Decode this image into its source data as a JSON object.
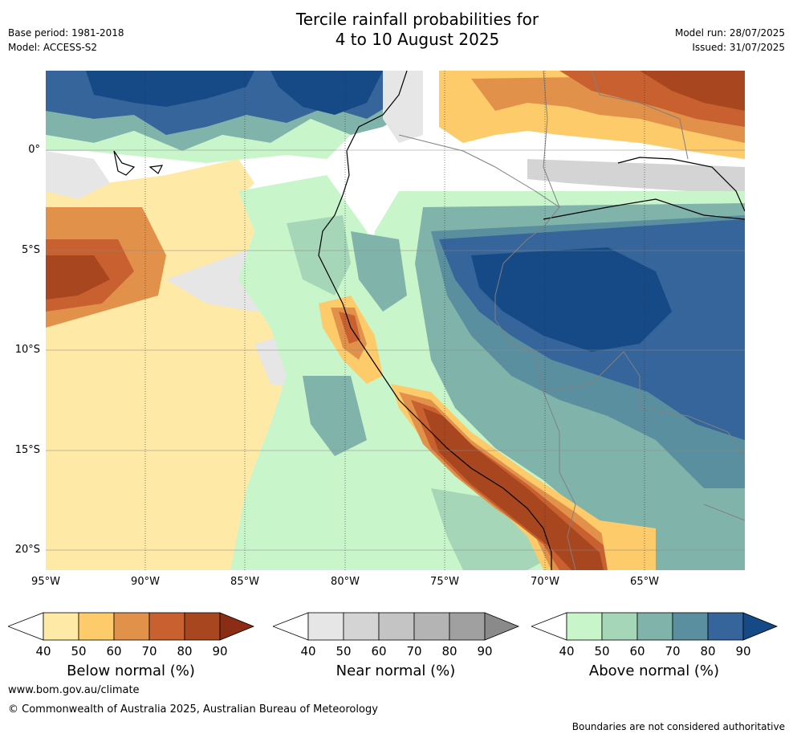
{
  "header": {
    "title_line1": "Tercile rainfall probabilities for",
    "title_line2": "4 to 10 August 2025",
    "base_period": "Base period: 1981-2018",
    "model": "Model: ACCESS-S2",
    "model_run": "Model run: 28/07/2025",
    "issued": "Issued: 31/07/2025"
  },
  "map": {
    "lat_labels": [
      "0°",
      "5°S",
      "10°S",
      "15°S",
      "20°S"
    ],
    "lon_labels": [
      "95°W",
      "90°W",
      "85°W",
      "80°W",
      "75°W",
      "70°W",
      "65°W"
    ],
    "lat_values": [
      0,
      -5,
      -10,
      -15,
      -20
    ],
    "lon_values": [
      -95,
      -90,
      -85,
      -80,
      -75,
      -70,
      -65
    ],
    "extent": {
      "lon_min": -95,
      "lon_max": -60,
      "lat_min": -21,
      "lat_max": 4
    }
  },
  "colorbars": [
    {
      "title": "Below normal (%)",
      "ticks": [
        "40",
        "50",
        "60",
        "70",
        "80",
        "90"
      ],
      "colors": [
        "#fee9a6",
        "#fecb6a",
        "#e2914a",
        "#c8602f",
        "#a8461f",
        "#8b2c14"
      ]
    },
    {
      "title": "Near normal (%)",
      "ticks": [
        "40",
        "50",
        "60",
        "70",
        "80",
        "90"
      ],
      "colors": [
        "#e6e6e6",
        "#d4d4d4",
        "#c4c4c4",
        "#b4b4b4",
        "#a0a0a0",
        "#8a8a8a"
      ]
    },
    {
      "title": "Above normal (%)",
      "ticks": [
        "40",
        "50",
        "60",
        "70",
        "80",
        "90"
      ],
      "colors": [
        "#c9f5cb",
        "#a6d6b8",
        "#80b4ab",
        "#5a8fa0",
        "#35659a",
        "#154a86"
      ]
    }
  ],
  "footer": {
    "url": "www.bom.gov.au/climate",
    "copyright": "© Commonwealth of Australia 2025, Australian Bureau of Meteorology",
    "disclaimer": "Boundaries are not considered authoritative"
  }
}
